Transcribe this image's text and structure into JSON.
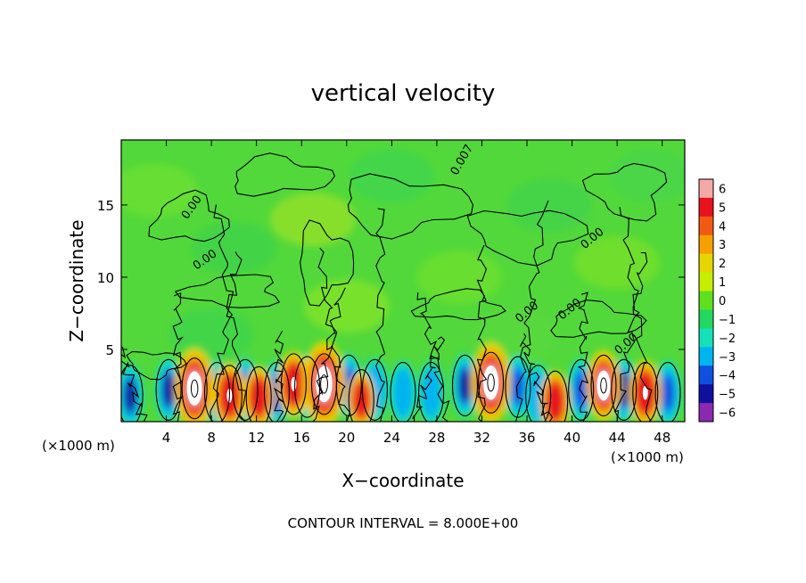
{
  "chart_data": {
    "type": "heatmap",
    "title": "vertical velocity",
    "xlabel": "X−coordinate",
    "ylabel": "Z−coordinate",
    "x_unit_left": "(×1000 m)",
    "x_unit_right": "(×1000 m)",
    "footer": "CONTOUR INTERVAL = 8.000E+00",
    "xlim": [
      0,
      50
    ],
    "ylim": [
      0,
      19.5
    ],
    "x_ticks": [
      "4",
      "8",
      "12",
      "16",
      "20",
      "24",
      "28",
      "32",
      "36",
      "40",
      "44",
      "48"
    ],
    "y_ticks": [
      "5",
      "10",
      "15"
    ],
    "colorbar": {
      "range": [
        -6,
        6
      ],
      "labels": [
        "6",
        "5",
        "4",
        "3",
        "2",
        "1",
        "0",
        "−1",
        "−2",
        "−3",
        "−4",
        "−5",
        "−6"
      ],
      "colors": [
        "#f5a8a8",
        "#e8121e",
        "#f25a14",
        "#f5a000",
        "#e6d600",
        "#c6ee00",
        "#5ee01e",
        "#22d860",
        "#16e0b8",
        "#00b4f0",
        "#0f50e0",
        "#10109e",
        "#8a2ab0"
      ]
    },
    "contour_labels": [
      "0.007",
      "0.00",
      "0.00",
      "0.00",
      "0.00",
      "0.00",
      "0.00"
    ],
    "updrafts": [
      {
        "x": 6.5,
        "z": 2.3,
        "w": 8
      },
      {
        "x": 9.6,
        "z": 1.8,
        "w": 5
      },
      {
        "x": 12.2,
        "z": 1.7,
        "w": 4
      },
      {
        "x": 15.3,
        "z": 2.6,
        "w": 5
      },
      {
        "x": 18.0,
        "z": 2.6,
        "w": 9
      },
      {
        "x": 21.3,
        "z": 1.5,
        "w": 3
      },
      {
        "x": 32.8,
        "z": 2.7,
        "w": 8
      },
      {
        "x": 38.5,
        "z": 1.4,
        "w": 4
      },
      {
        "x": 42.8,
        "z": 2.5,
        "w": 6
      },
      {
        "x": 46.5,
        "z": 2.0,
        "w": 5
      }
    ],
    "downdrafts": [
      {
        "x": 0.8,
        "z": 1.8,
        "w": -5
      },
      {
        "x": 4.2,
        "z": 2.2,
        "w": -5
      },
      {
        "x": 8.5,
        "z": 2.0,
        "w": -4
      },
      {
        "x": 11.0,
        "z": 2.2,
        "w": -4
      },
      {
        "x": 13.8,
        "z": 2.0,
        "w": -4
      },
      {
        "x": 16.5,
        "z": 2.4,
        "w": -5
      },
      {
        "x": 20.2,
        "z": 2.5,
        "w": -4
      },
      {
        "x": 22.5,
        "z": 2.2,
        "w": -3
      },
      {
        "x": 25.0,
        "z": 2.0,
        "w": -3
      },
      {
        "x": 27.5,
        "z": 2.0,
        "w": -3
      },
      {
        "x": 30.5,
        "z": 2.5,
        "w": -5
      },
      {
        "x": 35.2,
        "z": 2.4,
        "w": -4
      },
      {
        "x": 37.0,
        "z": 1.8,
        "w": -3
      },
      {
        "x": 40.8,
        "z": 2.2,
        "w": -4
      },
      {
        "x": 44.6,
        "z": 2.2,
        "w": -5
      },
      {
        "x": 48.5,
        "z": 2.0,
        "w": -4
      }
    ]
  }
}
